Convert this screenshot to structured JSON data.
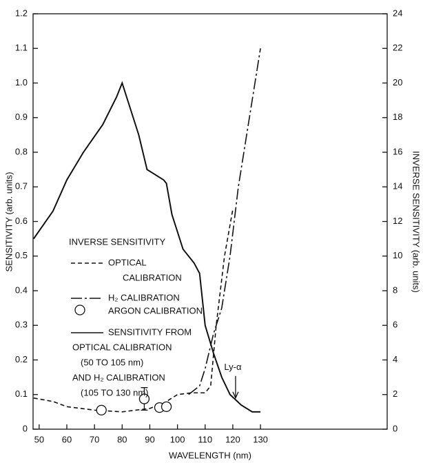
{
  "chart_data": {
    "type": "line",
    "xlabel": "WAVELENGTH (nm)",
    "ylabel": "SENSITIVITY (arb. units)",
    "y2label": "INVERSE SENSITIVITY (arb. units)",
    "xlim": [
      47.8,
      175.8
    ],
    "xticks": [
      50,
      60,
      70,
      80,
      90,
      100,
      110,
      120,
      130
    ],
    "ylim": [
      0,
      1.2
    ],
    "yticks": [
      0,
      0.1,
      0.2,
      0.3,
      0.4,
      0.5,
      0.6,
      0.7,
      0.8,
      0.9,
      {
        "value": 1,
        "label": "1.0"
      },
      1.1,
      1.2
    ],
    "y2lim": [
      0,
      24
    ],
    "y2ticks": [
      0,
      2,
      4,
      6,
      8,
      10,
      12,
      14,
      16,
      18,
      20,
      22,
      24
    ],
    "legend_title": "INVERSE SENSITIVITY",
    "series": [
      {
        "name": [
          "OPTICAL",
          "CALIBRATION"
        ],
        "axis": "y2",
        "style": "dashed",
        "color": "#111111",
        "x": [
          48,
          55,
          60,
          70,
          80,
          90,
          95,
          100,
          105,
          110,
          112,
          114,
          117,
          120
        ],
        "values": [
          1.8,
          1.6,
          1.3,
          1.1,
          1.0,
          1.2,
          1.5,
          2.0,
          2.1,
          2.1,
          2.5,
          6,
          10,
          12.7
        ]
      },
      {
        "name": [
          "H₂ CALIBRATION"
        ],
        "axis": "y2",
        "style": "dash-dot",
        "color": "#111111",
        "x": [
          104,
          108,
          110,
          113,
          116,
          119,
          122,
          126,
          130
        ],
        "values": [
          2.0,
          2.5,
          3.5,
          5.5,
          7,
          10,
          14,
          18,
          22
        ]
      },
      {
        "name": [
          "ARGON CALIBRATION"
        ],
        "axis": "y2",
        "style": "markers",
        "color": "#111111",
        "x": [
          72.5,
          88,
          93.5,
          96
        ],
        "values": [
          1.1,
          1.75,
          1.25,
          1.3
        ],
        "errors": [
          null,
          0.65,
          null,
          null
        ]
      },
      {
        "name": [
          "SENSITIVITY FROM",
          "OPTICAL CALIBRATION",
          "(50 TO 105 nm)",
          "AND H₂ CALIBRATION",
          "(105 TO 130 nm)"
        ],
        "axis": "y",
        "style": "solid",
        "color": "#111111",
        "x": [
          48,
          55,
          60,
          66,
          73,
          78,
          80,
          82,
          86,
          89,
          95,
          96,
          98,
          102,
          106,
          108,
          110,
          113,
          116,
          119,
          123,
          127,
          130
        ],
        "values": [
          0.55,
          0.63,
          0.72,
          0.8,
          0.88,
          0.96,
          1.0,
          0.95,
          0.85,
          0.75,
          0.72,
          0.71,
          0.62,
          0.52,
          0.48,
          0.45,
          0.3,
          0.22,
          0.15,
          0.1,
          0.07,
          0.05,
          0.05
        ]
      }
    ],
    "annotations": [
      {
        "text": "Ly-α",
        "x": 121,
        "y": 0.09
      }
    ]
  }
}
